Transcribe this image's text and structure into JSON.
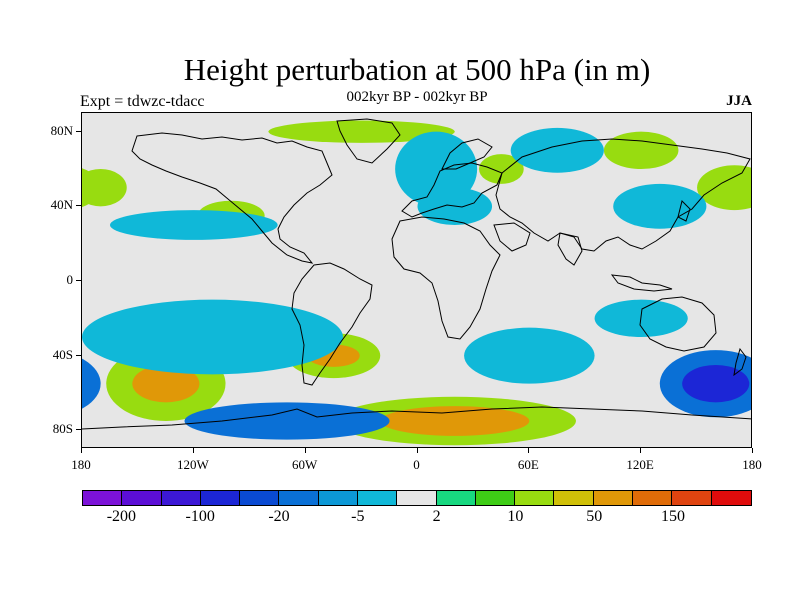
{
  "title": "Height perturbation at 500 hPa (in m)",
  "subtitle": "002kyr BP - 002kyr BP",
  "experiment_label": "Expt = tdwzc-tdacc",
  "season_label": "JJA",
  "map": {
    "projection": "cylindrical-equidistant",
    "lon_range": [
      -180,
      180
    ],
    "lat_range": [
      -90,
      90
    ],
    "background_color": "#e6e6e6",
    "coastline_color": "#000000",
    "lat_ticks": [
      {
        "value": 80,
        "label": "80N"
      },
      {
        "value": 40,
        "label": "40N"
      },
      {
        "value": 0,
        "label": "0"
      },
      {
        "value": -40,
        "label": "40S"
      },
      {
        "value": -80,
        "label": "80S"
      }
    ],
    "lon_ticks": [
      {
        "value": -180,
        "label": "180"
      },
      {
        "value": -120,
        "label": "120W"
      },
      {
        "value": -60,
        "label": "60W"
      },
      {
        "value": 0,
        "label": "0"
      },
      {
        "value": 60,
        "label": "60E"
      },
      {
        "value": 120,
        "label": "120E"
      },
      {
        "value": 180,
        "label": "180"
      }
    ]
  },
  "colorbar": {
    "colors": [
      "#7c12d8",
      "#5c0ed6",
      "#3c18d6",
      "#1c26d6",
      "#0a4ad2",
      "#0a70d6",
      "#0c98d6",
      "#10b8d8",
      "#e6e6e6",
      "#18d880",
      "#3ecc16",
      "#98dc10",
      "#d0c008",
      "#e09808",
      "#e06c08",
      "#e04410",
      "#e00c0c"
    ],
    "labels": [
      {
        "index": 1,
        "text": "-200"
      },
      {
        "index": 3,
        "text": "-100"
      },
      {
        "index": 5,
        "text": "-20"
      },
      {
        "index": 7,
        "text": "-5"
      },
      {
        "index": 9,
        "text": "2"
      },
      {
        "index": 11,
        "text": "10"
      },
      {
        "index": 13,
        "text": "50"
      },
      {
        "index": 15,
        "text": "150"
      }
    ]
  },
  "field_regions": [
    {
      "lon": 160,
      "lat": -55,
      "rlon": 30,
      "rlat": 18,
      "level": -20
    },
    {
      "lon": 160,
      "lat": -55,
      "rlon": 18,
      "rlat": 10,
      "level": -100
    },
    {
      "lon": 20,
      "lat": -75,
      "rlon": 65,
      "rlat": 13,
      "level": 10
    },
    {
      "lon": 20,
      "lat": -75,
      "rlon": 40,
      "rlat": 8,
      "level": 50
    },
    {
      "lon": -135,
      "lat": -55,
      "rlon": 32,
      "rlat": 20,
      "level": 10
    },
    {
      "lon": -135,
      "lat": -55,
      "rlon": 18,
      "rlat": 10,
      "level": 50
    },
    {
      "lon": -45,
      "lat": -40,
      "rlon": 25,
      "rlat": 12,
      "level": 10
    },
    {
      "lon": -45,
      "lat": -40,
      "rlon": 14,
      "rlat": 6,
      "level": 50
    },
    {
      "lon": -70,
      "lat": -75,
      "rlon": 55,
      "rlat": 10,
      "level": -20
    },
    {
      "lon": 45,
      "lat": 60,
      "rlon": 12,
      "rlat": 8,
      "level": 10
    },
    {
      "lon": -30,
      "lat": 80,
      "rlon": 50,
      "rlat": 6,
      "level": 10
    },
    {
      "lon": 170,
      "lat": 50,
      "rlon": 20,
      "rlat": 12,
      "level": 10
    },
    {
      "lon": 120,
      "lat": 70,
      "rlon": 20,
      "rlat": 10,
      "level": 10
    },
    {
      "lon": -170,
      "lat": 50,
      "rlon": 14,
      "rlat": 10,
      "level": 10
    },
    {
      "lon": -100,
      "lat": 35,
      "rlon": 18,
      "rlat": 8,
      "level": 10
    },
    {
      "lon": 10,
      "lat": 60,
      "rlon": 22,
      "rlat": 20,
      "level": -5
    },
    {
      "lon": 20,
      "lat": 40,
      "rlon": 20,
      "rlat": 10,
      "level": -5
    },
    {
      "lon": 75,
      "lat": 70,
      "rlon": 25,
      "rlat": 12,
      "level": -5
    },
    {
      "lon": 130,
      "lat": 40,
      "rlon": 25,
      "rlat": 12,
      "level": -5
    },
    {
      "lon": -120,
      "lat": 30,
      "rlon": 45,
      "rlat": 8,
      "level": -5
    },
    {
      "lon": -110,
      "lat": -30,
      "rlon": 70,
      "rlat": 20,
      "level": -5
    },
    {
      "lon": 60,
      "lat": -40,
      "rlon": 35,
      "rlat": 15,
      "level": -5
    },
    {
      "lon": 120,
      "lat": -20,
      "rlon": 25,
      "rlat": 10,
      "level": -5
    }
  ]
}
